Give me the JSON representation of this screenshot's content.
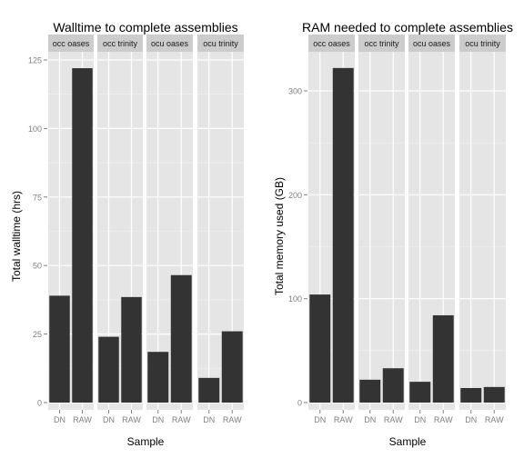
{
  "chart_data": [
    {
      "type": "bar",
      "title": "Walltime to complete assemblies",
      "xlabel": "Sample",
      "ylabel": "Total walltime (hrs)",
      "ylim": [
        0,
        130
      ],
      "yticks": [
        0,
        25,
        50,
        75,
        100,
        125
      ],
      "categories": [
        "DN",
        "RAW"
      ],
      "panels": [
        {
          "name": "occ oases",
          "values": [
            39,
            122
          ]
        },
        {
          "name": "occ trinity",
          "values": [
            24,
            38.5
          ]
        },
        {
          "name": "ocu oases",
          "values": [
            18.5,
            46.5
          ]
        },
        {
          "name": "ocu trinity",
          "values": [
            9,
            26
          ]
        }
      ],
      "bar_color": "#333333",
      "panel_bg": "#e5e5e5",
      "strip_bg": "#cccccc",
      "grid": true,
      "legend": "none"
    },
    {
      "type": "bar",
      "title": "RAM needed to complete assemblies",
      "xlabel": "Sample",
      "ylabel": "Total memory used (GB)",
      "ylim": [
        0,
        340
      ],
      "yticks": [
        0,
        100,
        200,
        300
      ],
      "categories": [
        "DN",
        "RAW"
      ],
      "panels": [
        {
          "name": "occ oases",
          "values": [
            104,
            322
          ]
        },
        {
          "name": "occ trinity",
          "values": [
            22,
            33
          ]
        },
        {
          "name": "ocu oases",
          "values": [
            20,
            84
          ]
        },
        {
          "name": "ocu trinity",
          "values": [
            14,
            15
          ]
        }
      ],
      "bar_color": "#333333",
      "panel_bg": "#e5e5e5",
      "strip_bg": "#cccccc",
      "grid": true,
      "legend": "none"
    }
  ]
}
